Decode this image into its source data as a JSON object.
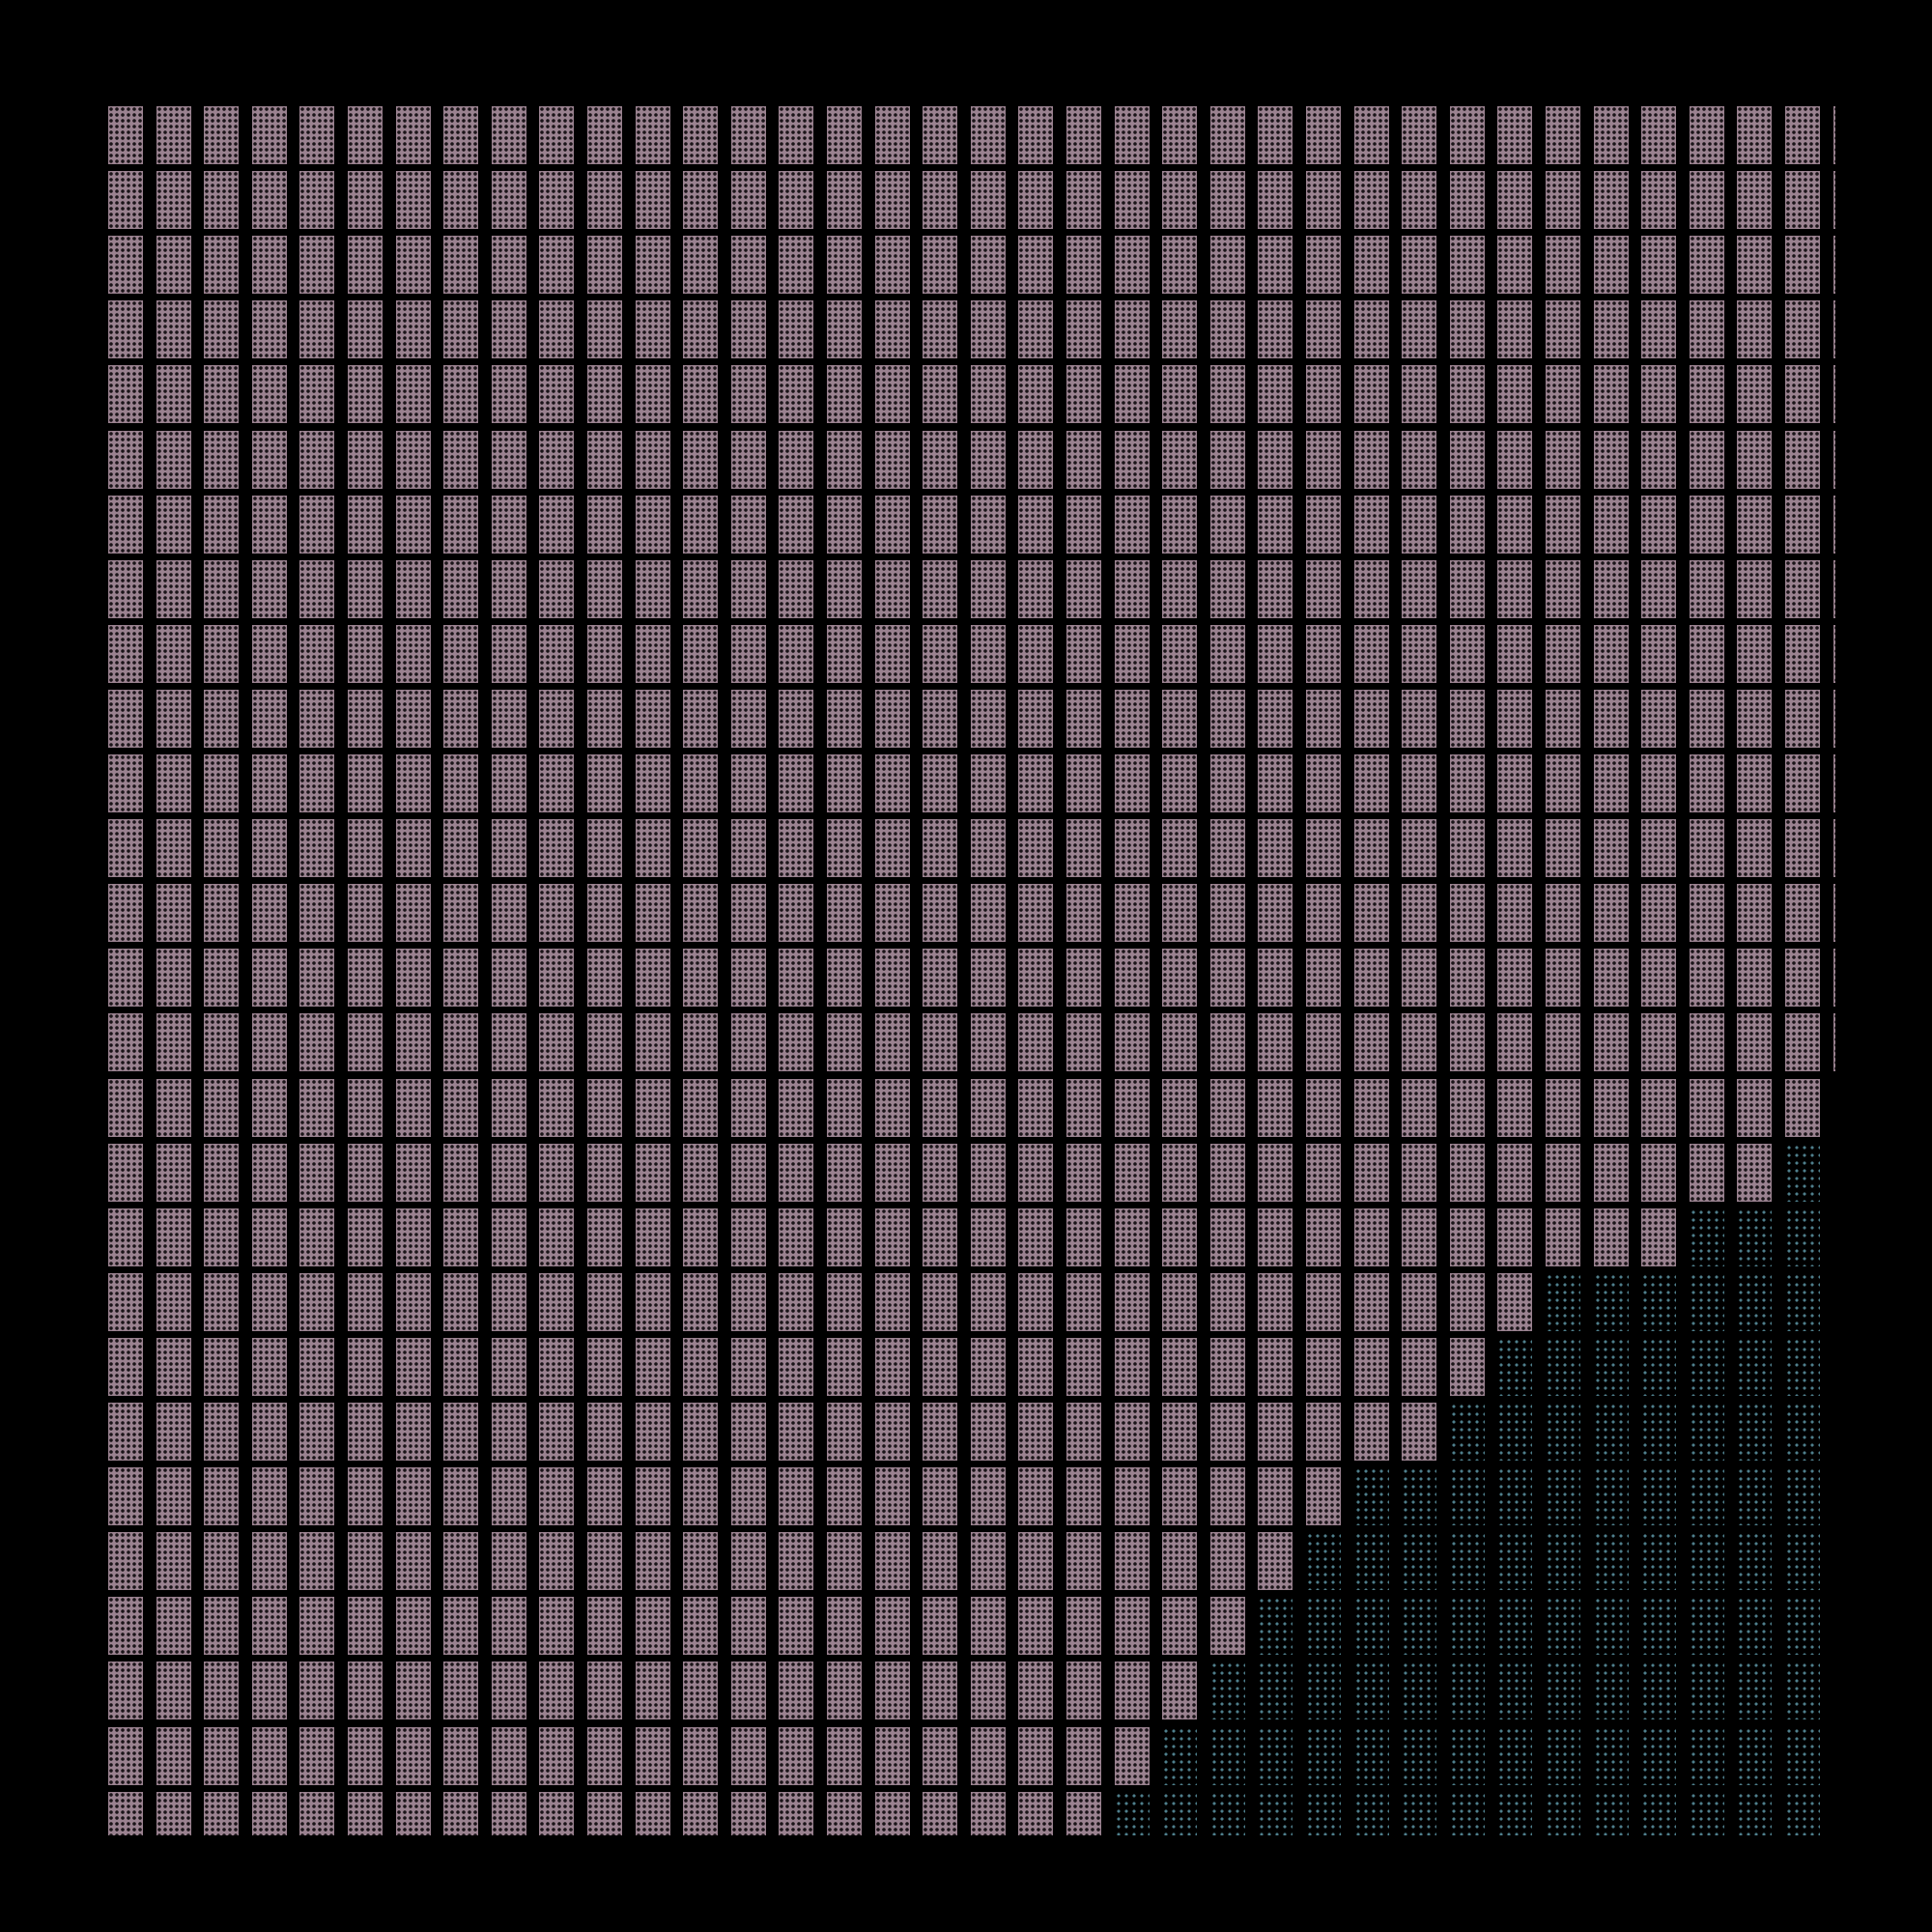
{
  "pattern": {
    "rows": 27,
    "columns": 37,
    "colors": {
      "background": "#000000",
      "primary_cell": "#9a8290",
      "secondary_dots": "#4f7f8c"
    },
    "primary_cells_per_row": [
      37,
      37,
      37,
      37,
      37,
      37,
      37,
      37,
      37,
      37,
      37,
      37,
      37,
      37,
      37,
      36,
      35,
      33,
      30,
      29,
      28,
      26,
      25,
      24,
      23,
      22,
      21
    ]
  }
}
